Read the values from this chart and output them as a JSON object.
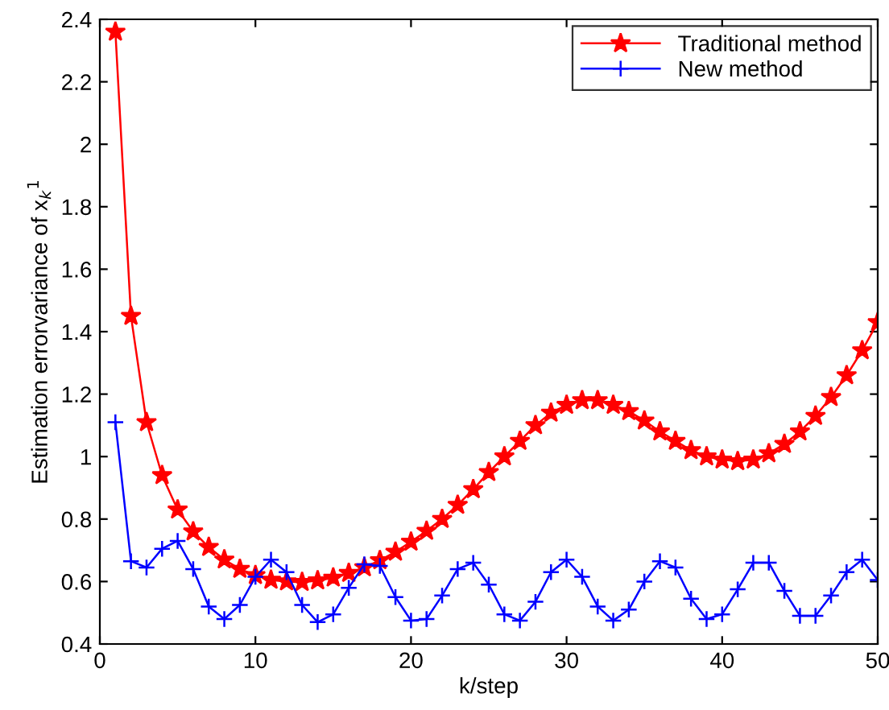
{
  "chart_data": {
    "type": "line",
    "xlabel": "k/step",
    "ylabel": "Estimation errorvariance of x$_{k}$$^{1}$",
    "x": [
      1,
      2,
      3,
      4,
      5,
      6,
      7,
      8,
      9,
      10,
      11,
      12,
      13,
      14,
      15,
      16,
      17,
      18,
      19,
      20,
      21,
      22,
      23,
      24,
      25,
      26,
      27,
      28,
      29,
      30,
      31,
      32,
      33,
      34,
      35,
      36,
      37,
      38,
      39,
      40,
      41,
      42,
      43,
      44,
      45,
      46,
      47,
      48,
      49,
      50
    ],
    "series": [
      {
        "name": "Traditional method",
        "color": "#ff0000",
        "marker": "star",
        "values": [
          2.36,
          1.45,
          1.11,
          0.94,
          0.83,
          0.76,
          0.71,
          0.67,
          0.64,
          0.62,
          0.605,
          0.6,
          0.598,
          0.603,
          0.612,
          0.627,
          0.645,
          0.668,
          0.695,
          0.727,
          0.762,
          0.8,
          0.845,
          0.895,
          0.95,
          1.0,
          1.05,
          1.1,
          1.14,
          1.165,
          1.18,
          1.18,
          1.165,
          1.145,
          1.115,
          1.08,
          1.05,
          1.02,
          1.0,
          0.99,
          0.985,
          0.99,
          1.01,
          1.04,
          1.08,
          1.13,
          1.19,
          1.26,
          1.34,
          1.43
        ]
      },
      {
        "name": "New method",
        "color": "#0000ff",
        "marker": "cross",
        "values": [
          1.11,
          0.665,
          0.645,
          0.705,
          0.73,
          0.64,
          0.52,
          0.48,
          0.525,
          0.615,
          0.67,
          0.63,
          0.525,
          0.47,
          0.495,
          0.58,
          0.655,
          0.65,
          0.55,
          0.475,
          0.48,
          0.555,
          0.64,
          0.66,
          0.59,
          0.495,
          0.475,
          0.535,
          0.63,
          0.67,
          0.615,
          0.52,
          0.475,
          0.51,
          0.6,
          0.665,
          0.645,
          0.545,
          0.48,
          0.495,
          0.575,
          0.66,
          0.66,
          0.57,
          0.49,
          0.49,
          0.555,
          0.63,
          0.67,
          0.605
        ]
      }
    ],
    "xlim": [
      0,
      50
    ],
    "xticks": [
      0,
      10,
      20,
      30,
      40,
      50
    ],
    "ylim": [
      0.4,
      2.4
    ],
    "yticks": [
      0.4,
      0.6,
      0.8,
      1,
      1.2,
      1.4,
      1.6,
      1.8,
      2,
      2.2,
      2.4
    ],
    "grid": false,
    "legend": "top right",
    "line_style": "solid"
  }
}
